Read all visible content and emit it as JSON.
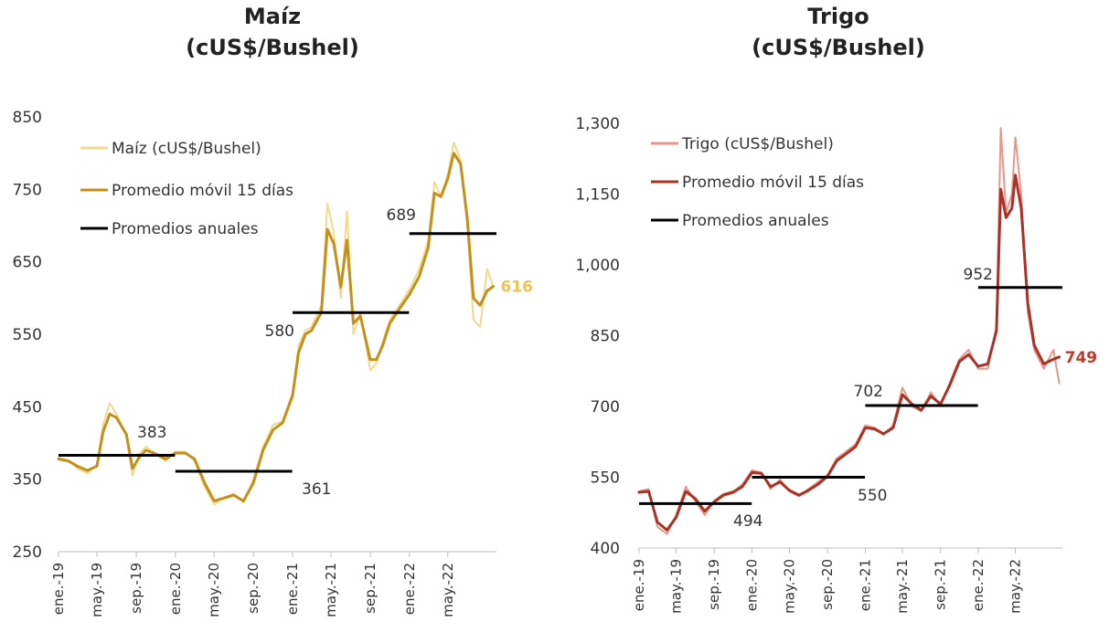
{
  "chart_data": [
    {
      "type": "line",
      "title": "Maíz",
      "subtitle": "(cUS$/Bushel)",
      "xlabel": "",
      "ylabel": "",
      "ylim": [
        250,
        850
      ],
      "yticks": [
        "850",
        "750",
        "650",
        "550",
        "450",
        "350",
        "250"
      ],
      "xticks": [
        "ene.-19",
        "may.-19",
        "sep.-19",
        "ene.-20",
        "may.-20",
        "sep.-20",
        "ene.-21",
        "may.-21",
        "sep.-21",
        "ene.-22",
        "may.-22"
      ],
      "xlim": [
        "2019-01-01",
        "2022-09-30"
      ],
      "legend": {
        "position": "top-left",
        "entries": [
          "Maíz (cUS$/Bushel)",
          "Promedio móvil 15 días",
          "Promedios anuales"
        ]
      },
      "colors": {
        "daily": "#f3d98e",
        "moving_avg": "#c4901c",
        "annual": "#000000",
        "last_label": "#f0c24a"
      },
      "series": [
        {
          "name": "Maíz (cUS$/Bushel)",
          "x": [
            "2019-01-01",
            "2019-02-01",
            "2019-03-01",
            "2019-04-01",
            "2019-05-01",
            "2019-05-20",
            "2019-06-10",
            "2019-07-01",
            "2019-08-01",
            "2019-08-20",
            "2019-09-10",
            "2019-10-01",
            "2019-11-01",
            "2019-12-01",
            "2020-01-01",
            "2020-02-01",
            "2020-03-01",
            "2020-04-01",
            "2020-05-01",
            "2020-06-01",
            "2020-07-01",
            "2020-08-01",
            "2020-09-01",
            "2020-10-01",
            "2020-11-01",
            "2020-12-01",
            "2021-01-01",
            "2021-01-20",
            "2021-02-10",
            "2021-03-01",
            "2021-04-01",
            "2021-04-20",
            "2021-05-10",
            "2021-06-01",
            "2021-06-20",
            "2021-07-10",
            "2021-08-01",
            "2021-09-01",
            "2021-09-20",
            "2021-10-10",
            "2021-11-01",
            "2021-12-01",
            "2022-01-01",
            "2022-02-01",
            "2022-03-01",
            "2022-03-20",
            "2022-04-10",
            "2022-05-01",
            "2022-05-20",
            "2022-06-10",
            "2022-07-01",
            "2022-07-20",
            "2022-08-10",
            "2022-09-01",
            "2022-09-20"
          ],
          "values": [
            380,
            376,
            365,
            358,
            370,
            425,
            455,
            440,
            410,
            355,
            385,
            395,
            385,
            375,
            388,
            388,
            375,
            340,
            315,
            325,
            330,
            318,
            350,
            395,
            425,
            430,
            470,
            535,
            555,
            560,
            590,
            730,
            690,
            600,
            720,
            550,
            580,
            500,
            510,
            540,
            570,
            590,
            612,
            640,
            680,
            760,
            740,
            770,
            815,
            790,
            700,
            570,
            560,
            640,
            616
          ]
        },
        {
          "name": "Promedio móvil 15 días",
          "x": [
            "2019-01-01",
            "2019-02-01",
            "2019-03-01",
            "2019-04-01",
            "2019-05-01",
            "2019-05-20",
            "2019-06-10",
            "2019-07-01",
            "2019-08-01",
            "2019-08-20",
            "2019-09-10",
            "2019-10-01",
            "2019-11-01",
            "2019-12-01",
            "2020-01-01",
            "2020-02-01",
            "2020-03-01",
            "2020-04-01",
            "2020-05-01",
            "2020-06-01",
            "2020-07-01",
            "2020-08-01",
            "2020-09-01",
            "2020-10-01",
            "2020-11-01",
            "2020-12-01",
            "2021-01-01",
            "2021-01-20",
            "2021-02-10",
            "2021-03-01",
            "2021-04-01",
            "2021-04-20",
            "2021-05-10",
            "2021-06-01",
            "2021-06-20",
            "2021-07-10",
            "2021-08-01",
            "2021-09-01",
            "2021-09-20",
            "2021-10-10",
            "2021-11-01",
            "2021-12-01",
            "2022-01-01",
            "2022-02-01",
            "2022-03-01",
            "2022-03-20",
            "2022-04-10",
            "2022-05-01",
            "2022-05-20",
            "2022-06-10",
            "2022-07-01",
            "2022-07-20",
            "2022-08-10",
            "2022-09-01",
            "2022-09-20"
          ],
          "values": [
            378,
            375,
            368,
            362,
            368,
            415,
            440,
            435,
            412,
            365,
            380,
            390,
            385,
            378,
            386,
            386,
            378,
            345,
            320,
            324,
            328,
            320,
            345,
            390,
            418,
            428,
            465,
            525,
            550,
            555,
            580,
            695,
            675,
            615,
            680,
            565,
            575,
            515,
            515,
            535,
            565,
            585,
            605,
            630,
            670,
            745,
            740,
            765,
            800,
            785,
            710,
            600,
            590,
            610,
            616
          ]
        }
      ],
      "annual_averages": [
        {
          "start": "2019-01-01",
          "end": "2019-12-31",
          "value": 383,
          "label": "383"
        },
        {
          "start": "2020-01-01",
          "end": "2020-12-31",
          "value": 361,
          "label": "361"
        },
        {
          "start": "2021-01-01",
          "end": "2021-12-31",
          "value": 580,
          "label": "580"
        },
        {
          "start": "2022-01-01",
          "end": "2022-09-30",
          "value": 689,
          "label": "689"
        }
      ],
      "last_value_label": "616"
    },
    {
      "type": "line",
      "title": "Trigo",
      "subtitle": "(cUS$/Bushel)",
      "xlabel": "",
      "ylabel": "",
      "ylim": [
        400,
        1300
      ],
      "yticks": [
        "1,300",
        "1,150",
        "1,000",
        "850",
        "700",
        "550",
        "400"
      ],
      "xticks": [
        "ene.-19",
        "may.-19",
        "sep.-19",
        "ene.-20",
        "may.-20",
        "sep.-20",
        "ene.-21",
        "may.-21",
        "sep.-21",
        "ene.-22",
        "may.-22"
      ],
      "xlim": [
        "2019-01-01",
        "2022-09-30"
      ],
      "legend": {
        "position": "top-left",
        "entries": [
          "Trigo (cUS$/Bushel)",
          "Promedio móvil 15 días",
          "Promedios anuales"
        ]
      },
      "colors": {
        "daily": "#e8958a",
        "moving_avg": "#a93226",
        "annual": "#000000",
        "last_label": "#c0392b"
      },
      "series": [
        {
          "name": "Trigo (cUS$/Bushel)",
          "x": [
            "2019-01-01",
            "2019-02-01",
            "2019-03-01",
            "2019-04-01",
            "2019-05-01",
            "2019-06-01",
            "2019-07-01",
            "2019-08-01",
            "2019-09-01",
            "2019-10-01",
            "2019-11-01",
            "2019-12-01",
            "2020-01-01",
            "2020-02-01",
            "2020-03-01",
            "2020-04-01",
            "2020-05-01",
            "2020-06-01",
            "2020-07-01",
            "2020-08-01",
            "2020-09-01",
            "2020-10-01",
            "2020-11-01",
            "2020-12-01",
            "2021-01-01",
            "2021-02-01",
            "2021-03-01",
            "2021-04-01",
            "2021-05-01",
            "2021-06-01",
            "2021-07-01",
            "2021-08-01",
            "2021-09-01",
            "2021-10-01",
            "2021-11-01",
            "2021-12-01",
            "2022-01-01",
            "2022-02-01",
            "2022-03-01",
            "2022-03-15",
            "2022-04-01",
            "2022-04-20",
            "2022-05-01",
            "2022-05-20",
            "2022-06-10",
            "2022-07-01",
            "2022-08-01",
            "2022-09-01",
            "2022-09-20"
          ],
          "values": [
            520,
            525,
            445,
            430,
            470,
            530,
            500,
            470,
            500,
            515,
            520,
            535,
            565,
            560,
            525,
            545,
            520,
            510,
            525,
            540,
            555,
            590,
            605,
            620,
            660,
            655,
            640,
            660,
            740,
            700,
            690,
            730,
            700,
            750,
            800,
            820,
            780,
            780,
            870,
            1290,
            1110,
            1150,
            1270,
            1150,
            900,
            820,
            780,
            820,
            749
          ]
        },
        {
          "name": "Promedio móvil 15 días",
          "x": [
            "2019-01-01",
            "2019-02-01",
            "2019-03-01",
            "2019-04-01",
            "2019-05-01",
            "2019-06-01",
            "2019-07-01",
            "2019-08-01",
            "2019-09-01",
            "2019-10-01",
            "2019-11-01",
            "2019-12-01",
            "2020-01-01",
            "2020-02-01",
            "2020-03-01",
            "2020-04-01",
            "2020-05-01",
            "2020-06-01",
            "2020-07-01",
            "2020-08-01",
            "2020-09-01",
            "2020-10-01",
            "2020-11-01",
            "2020-12-01",
            "2021-01-01",
            "2021-02-01",
            "2021-03-01",
            "2021-04-01",
            "2021-05-01",
            "2021-06-01",
            "2021-07-01",
            "2021-08-01",
            "2021-09-01",
            "2021-10-01",
            "2021-11-01",
            "2021-12-01",
            "2022-01-01",
            "2022-02-01",
            "2022-03-01",
            "2022-03-15",
            "2022-04-01",
            "2022-04-20",
            "2022-05-01",
            "2022-05-20",
            "2022-06-10",
            "2022-07-01",
            "2022-08-01",
            "2022-09-01",
            "2022-09-20"
          ],
          "values": [
            518,
            520,
            455,
            438,
            465,
            520,
            505,
            478,
            498,
            512,
            518,
            530,
            560,
            558,
            530,
            540,
            522,
            512,
            522,
            535,
            552,
            585,
            600,
            615,
            655,
            652,
            642,
            655,
            725,
            705,
            692,
            722,
            705,
            745,
            795,
            810,
            785,
            790,
            860,
            1160,
            1100,
            1120,
            1190,
            1120,
            920,
            830,
            790,
            800,
            805
          ]
        }
      ],
      "annual_averages": [
        {
          "start": "2019-01-01",
          "end": "2019-12-31",
          "value": 494,
          "label": "494"
        },
        {
          "start": "2020-01-01",
          "end": "2020-12-31",
          "value": 550,
          "label": "550"
        },
        {
          "start": "2021-01-01",
          "end": "2021-12-31",
          "value": 702,
          "label": "702"
        },
        {
          "start": "2022-01-01",
          "end": "2022-09-30",
          "value": 952,
          "label": "952"
        }
      ],
      "last_value_label": "749"
    }
  ]
}
